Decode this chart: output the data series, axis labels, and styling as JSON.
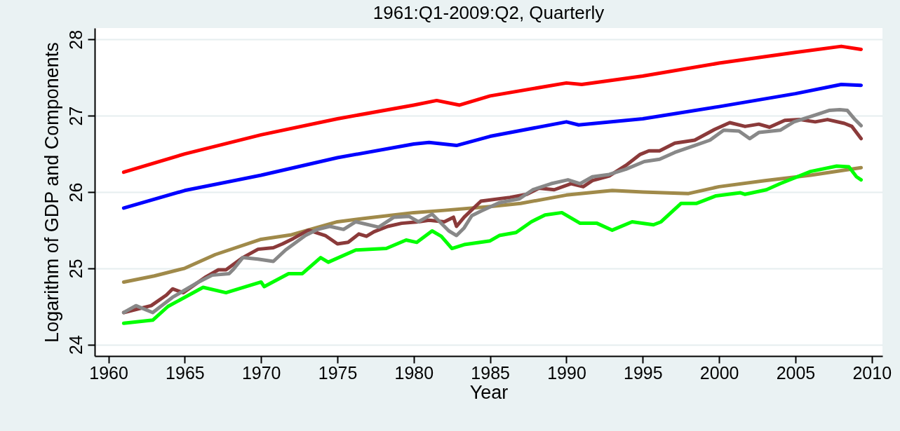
{
  "chart_data": {
    "type": "line",
    "title": "1961:Q1-2009:Q2, Quarterly",
    "xlabel": "Year",
    "ylabel": "Logarithm of GDP and Components",
    "xlim": [
      1959.1,
      2010.7
    ],
    "ylim": [
      23.85,
      28.15
    ],
    "xticks": [
      1960,
      1965,
      1970,
      1975,
      1980,
      1985,
      1990,
      1995,
      2000,
      2005,
      2010
    ],
    "yticks": [
      24,
      25,
      26,
      27,
      28
    ],
    "grid": "y",
    "legend": false,
    "series": [
      {
        "color": "#ff0000",
        "x": [
          1961,
          1965,
          1970,
          1975,
          1980,
          1981.5,
          1983,
          1985,
          1990,
          1991,
          1995,
          2000,
          2005,
          2008,
          2009.3
        ],
        "values": [
          26.26,
          26.5,
          26.75,
          26.96,
          27.14,
          27.2,
          27.14,
          27.26,
          27.43,
          27.41,
          27.52,
          27.69,
          27.83,
          27.91,
          27.87
        ]
      },
      {
        "color": "#0000ff",
        "x": [
          1961,
          1965,
          1970,
          1975,
          1980,
          1981,
          1982.8,
          1985,
          1990,
          1990.8,
          1995,
          2000,
          2005,
          2008,
          2009.3
        ],
        "values": [
          25.79,
          26.02,
          26.22,
          26.45,
          26.63,
          26.65,
          26.61,
          26.73,
          26.92,
          26.88,
          26.96,
          27.12,
          27.29,
          27.41,
          27.4
        ]
      },
      {
        "color": "#a08a4a",
        "x": [
          1961,
          1963,
          1965,
          1967,
          1970,
          1972,
          1975,
          1977,
          1980,
          1982,
          1985,
          1987,
          1990,
          1993,
          1995,
          1998,
          2000,
          2003,
          2006,
          2009.3
        ],
        "values": [
          24.82,
          24.9,
          25.0,
          25.18,
          25.38,
          25.44,
          25.61,
          25.66,
          25.73,
          25.76,
          25.81,
          25.85,
          25.96,
          26.02,
          26.0,
          25.98,
          26.07,
          26.15,
          26.22,
          26.32
        ]
      },
      {
        "color": "#00ff00",
        "x": [
          1961,
          1962.9,
          1963.9,
          1966.2,
          1967.7,
          1970,
          1970.2,
          1971.8,
          1972.7,
          1973.9,
          1974.4,
          1976.2,
          1978.2,
          1979.5,
          1980.2,
          1981.2,
          1981.8,
          1982.5,
          1983.3,
          1985,
          1985.6,
          1986.7,
          1987.7,
          1988.6,
          1989.7,
          1990.9,
          1992,
          1993,
          1994.3,
          1995.7,
          1996.2,
          1997.5,
          1998.5,
          1999.8,
          2001.4,
          2001.7,
          2003.1,
          2004,
          2006,
          2007.7,
          2008.5,
          2009,
          2009.3
        ],
        "values": [
          24.28,
          24.32,
          24.5,
          24.75,
          24.68,
          24.82,
          24.76,
          24.93,
          24.93,
          25.14,
          25.08,
          25.24,
          25.26,
          25.37,
          25.34,
          25.49,
          25.42,
          25.26,
          25.31,
          25.36,
          25.43,
          25.47,
          25.61,
          25.7,
          25.73,
          25.59,
          25.59,
          25.5,
          25.61,
          25.57,
          25.61,
          25.85,
          25.85,
          25.95,
          25.99,
          25.97,
          26.03,
          26.11,
          26.27,
          26.34,
          26.33,
          26.2,
          26.16
        ]
      },
      {
        "color": "#8b3a3a",
        "x": [
          1961,
          1962.8,
          1963.8,
          1964.2,
          1964.9,
          1966.4,
          1967.2,
          1967.7,
          1968.8,
          1969.8,
          1970.8,
          1971.4,
          1972.1,
          1973.1,
          1974.2,
          1975,
          1975.7,
          1976.4,
          1976.9,
          1977.4,
          1978.3,
          1979.2,
          1980.3,
          1981,
          1982,
          1982.6,
          1982.8,
          1983.3,
          1984.4,
          1986.3,
          1987.4,
          1988.2,
          1989.2,
          1990.3,
          1991.1,
          1991.7,
          1992.8,
          1993.9,
          1994.8,
          1995.4,
          1996.1,
          1997.1,
          1998.4,
          1999.7,
          2000.7,
          2001.7,
          2002.6,
          2003.3,
          2004.3,
          2005.3,
          2006.3,
          2007.1,
          2008.2,
          2008.7,
          2009.3
        ],
        "values": [
          24.42,
          24.51,
          24.65,
          24.73,
          24.68,
          24.89,
          24.98,
          24.98,
          25.14,
          25.25,
          25.27,
          25.32,
          25.39,
          25.5,
          25.43,
          25.32,
          25.34,
          25.45,
          25.42,
          25.48,
          25.55,
          25.59,
          25.61,
          25.63,
          25.61,
          25.67,
          25.55,
          25.67,
          25.88,
          25.93,
          25.97,
          26.05,
          26.03,
          26.11,
          26.07,
          26.15,
          26.21,
          26.35,
          26.49,
          26.54,
          26.54,
          26.64,
          26.68,
          26.82,
          26.91,
          26.86,
          26.89,
          26.85,
          26.94,
          26.95,
          26.92,
          26.95,
          26.9,
          26.86,
          26.7
        ]
      },
      {
        "color": "#888888",
        "x": [
          1961,
          1961.8,
          1962.9,
          1964.2,
          1965.9,
          1966.8,
          1967.9,
          1968.2,
          1968.8,
          1969.8,
          1970.8,
          1971.6,
          1972.9,
          1973.7,
          1974.5,
          1975.4,
          1976.2,
          1977.7,
          1978.7,
          1979.7,
          1980.3,
          1981.2,
          1982.3,
          1982.8,
          1983.3,
          1983.8,
          1984.4,
          1985.6,
          1986.9,
          1987.8,
          1989,
          1990.1,
          1990.9,
          1991.7,
          1992.8,
          1993.9,
          1995.1,
          1996.1,
          1997.1,
          1998.4,
          1999.4,
          2000.3,
          2001.3,
          2002,
          2002.6,
          2004,
          2004.9,
          2006.3,
          2007.2,
          2007.9,
          2008.4,
          2008.9,
          2009.3
        ],
        "values": [
          24.42,
          24.51,
          24.42,
          24.62,
          24.82,
          24.91,
          24.93,
          24.99,
          25.14,
          25.12,
          25.09,
          25.24,
          25.43,
          25.51,
          25.55,
          25.51,
          25.61,
          25.54,
          25.67,
          25.68,
          25.61,
          25.71,
          25.49,
          25.43,
          25.53,
          25.69,
          25.75,
          25.86,
          25.91,
          26.03,
          26.11,
          26.16,
          26.11,
          26.2,
          26.23,
          26.3,
          26.4,
          26.43,
          26.52,
          26.61,
          26.68,
          26.81,
          26.8,
          26.7,
          26.78,
          26.81,
          26.92,
          27.01,
          27.07,
          27.08,
          27.07,
          26.95,
          26.87
        ]
      }
    ]
  }
}
